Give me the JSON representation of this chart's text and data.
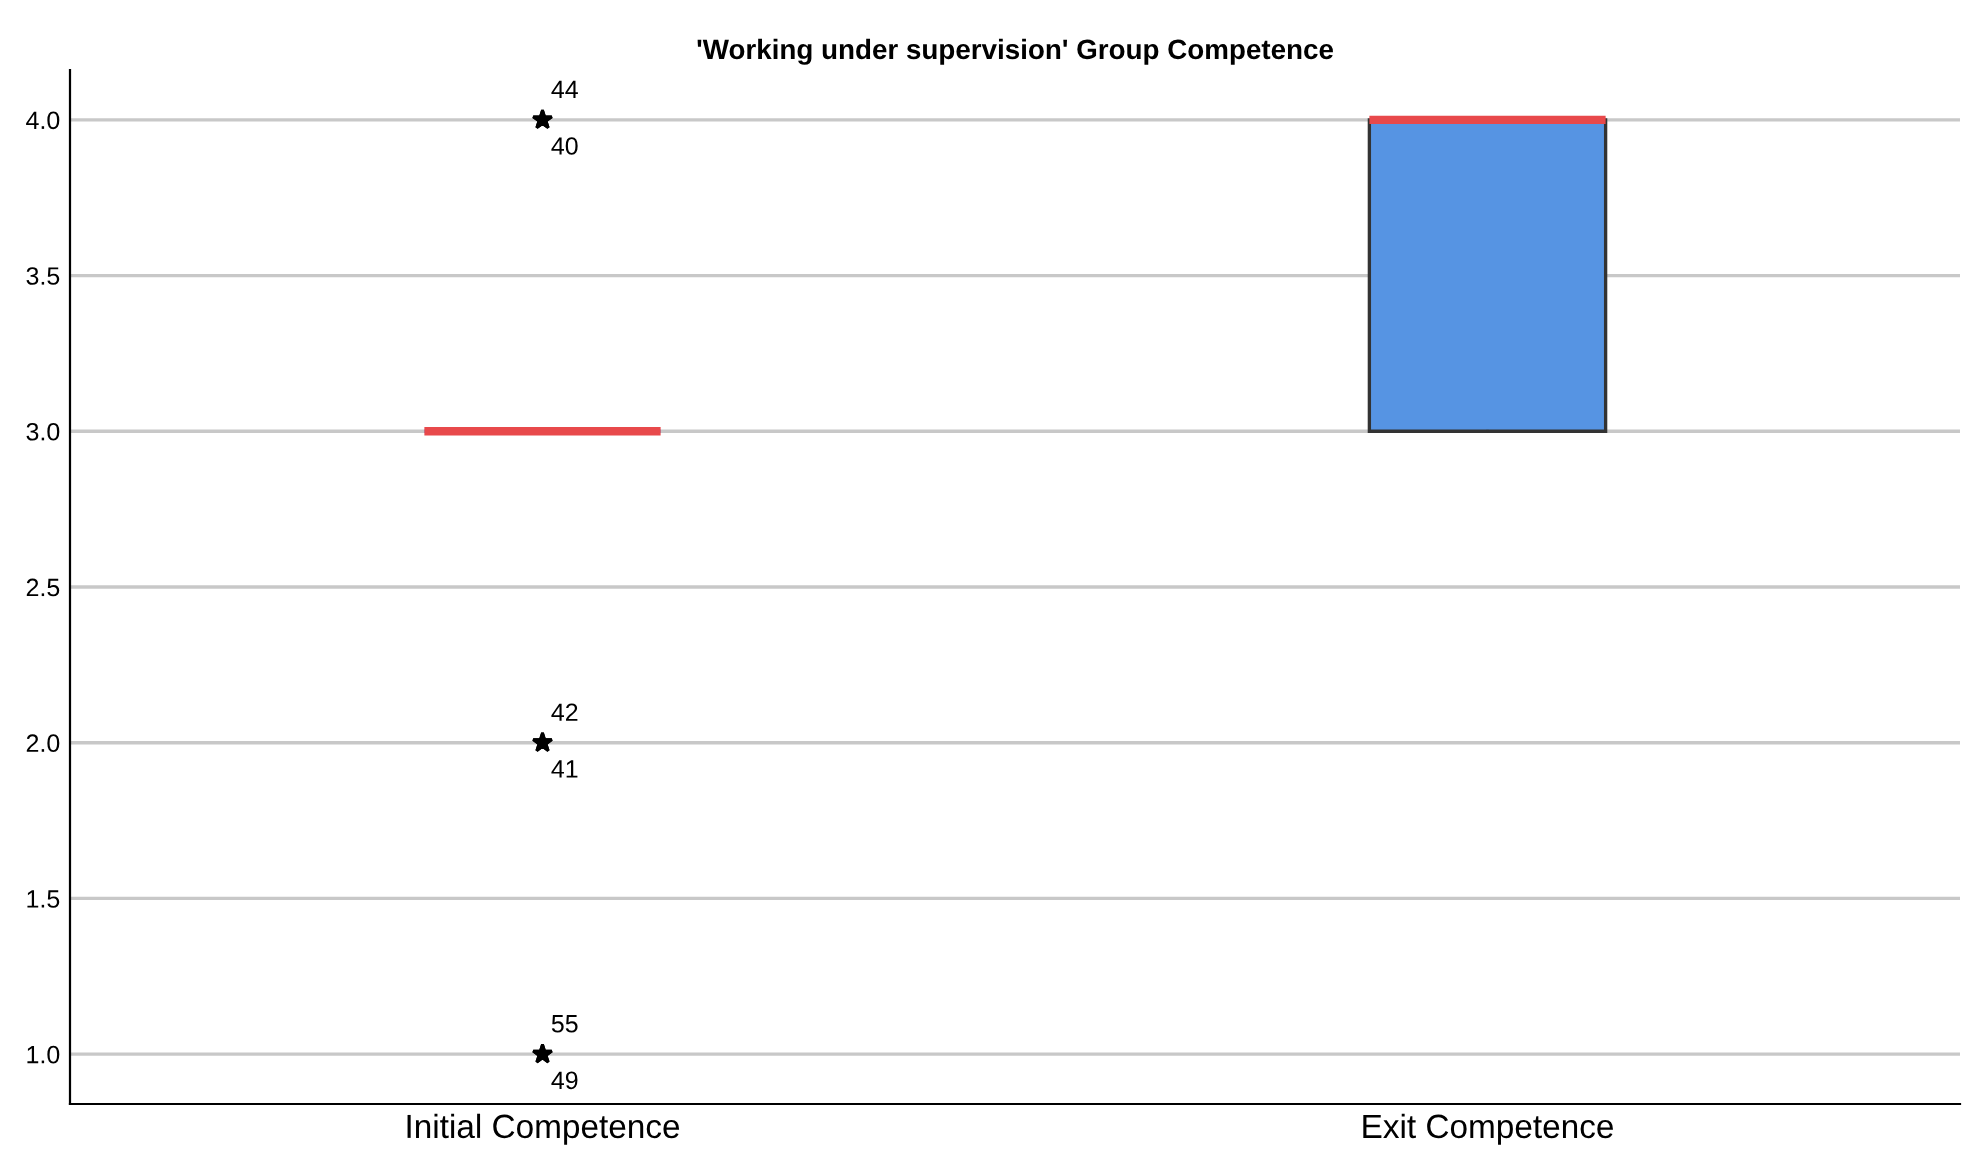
{
  "chart_data": {
    "type": "box",
    "title": "'Working under supervision' Group Competence",
    "categories": [
      "Initial Competence",
      "Exit Competence"
    ],
    "boxes": [
      {
        "low": 3,
        "q1": 3,
        "median": 3,
        "q3": 3,
        "high": 3,
        "outliers": [
          4,
          4,
          2,
          2,
          1,
          1
        ]
      },
      {
        "low": 3,
        "q1": 3,
        "median": 4,
        "q3": 4,
        "high": 4
      }
    ],
    "color": "#5694e3",
    "marker": "star",
    "ylim": [
      0.84,
      4.16
    ],
    "yticks": [
      {
        "value": 1,
        "label": "1.0"
      },
      {
        "value": 1.5,
        "label": "1.5"
      },
      {
        "value": 2,
        "label": "2.0"
      },
      {
        "value": 2.5,
        "label": "2.5"
      },
      {
        "value": 3,
        "label": "3.0"
      },
      {
        "value": 3.5,
        "label": "3.5"
      },
      {
        "value": 4,
        "label": "4.0"
      }
    ],
    "grid": "y",
    "annotations": [
      "44",
      "40",
      "42",
      "41",
      "55",
      "49"
    ]
  }
}
